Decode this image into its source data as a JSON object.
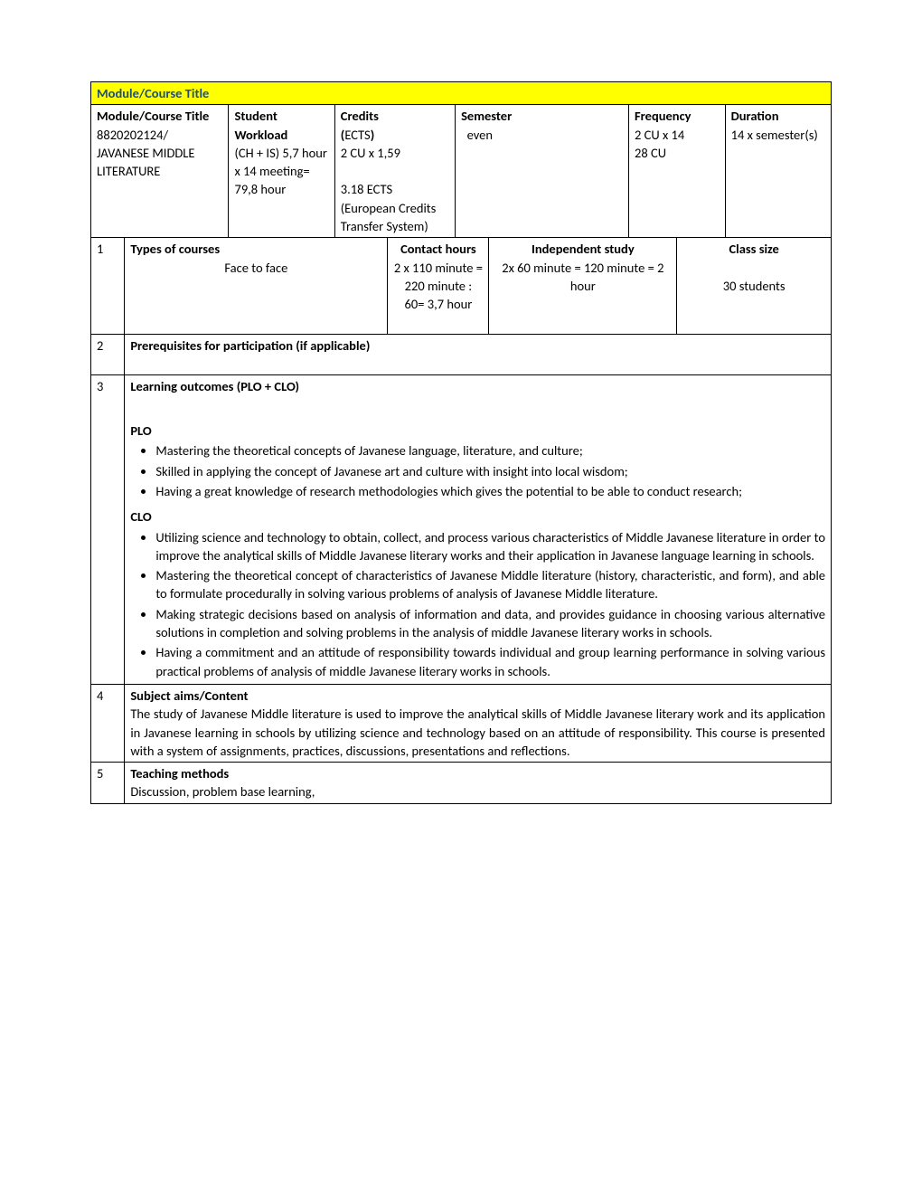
{
  "title_bar": "Module/Course Title",
  "header": {
    "col1_label": "Module/Course Title",
    "col1_val": "8820202124/ JAVANESE MIDDLE LITERATURE",
    "col2_label": "Student Workload",
    "col2_val": "(CH + IS) 5,7 hour x 14 meeting=  79,8 hour",
    "col3_label1": "Credits",
    "col3_label2": "(",
    "col3_label3": "ECTS",
    "col3_label4": ")",
    "col3_val": "2 CU x 1,59\n\n3.18 ECTS (European Credits Transfer System)",
    "col4_label": "Semester",
    "col4_val": "even",
    "col5_label": "Frequency",
    "col5_val": "2 CU x 14\n28 CU",
    "col6_label": "Duration",
    "col6_val": "14 x semester(s)"
  },
  "row1": {
    "num": "1",
    "types_label": "Types of courses",
    "types_val": "Face to face",
    "contact_label": "Contact hours",
    "contact_val": "2 x 110 minute =\n220 minute : 60= 3,7 hour",
    "indep_label": "Independent study",
    "indep_val": "2x 60 minute = 120 minute = 2 hour",
    "class_label": "Class size",
    "class_val": "30 students"
  },
  "row2": {
    "num": "2",
    "label": "Prerequisites for participation (if applicable)"
  },
  "row3": {
    "num": "3",
    "label": "Learning outcomes (PLO + CLO)",
    "plo_label": "PLO",
    "plo_items": [
      "Mastering the theoretical concepts of Javanese language, literature, and culture;",
      "Skilled in applying the concept of Javanese art and culture with insight into local wisdom;",
      "Having a great knowledge of research methodologies which gives the potential to be able to conduct research;"
    ],
    "clo_label": "CLO",
    "clo_items": [
      "Utilizing science and technology to obtain, collect, and process various characteristics of Middle Javanese literature in order to improve the analytical skills of Middle Javanese literary works and their application in Javanese language learning in schools.",
      "Mastering the theoretical concept of characteristics of Javanese Middle literature (history, characteristic, and form), and able to formulate procedurally in solving various problems of analysis of Javanese Middle literature.",
      "Making strategic decisions based on analysis of information and data, and provides guidance in choosing various alternative solutions in completion and solving problems in the analysis of middle Javanese literary works in schools.",
      "Having a commitment and an attitude of responsibility towards individual and group learning performance in solving various practical problems of analysis of middle Javanese literary works in schools."
    ]
  },
  "row4": {
    "num": "4",
    "label": "Subject aims/Content",
    "text": "The study of Javanese Middle literature is used to improve the analytical skills of Middle Javanese literary work and its application in Javanese learning in schools by utilizing science and technology based on an attitude of responsibility. This course is presented with a system of assignments, practices, discussions, presentations and reflections."
  },
  "row5": {
    "num": "5",
    "label": "Teaching methods",
    "text": "Discussion, problem base learning,"
  }
}
